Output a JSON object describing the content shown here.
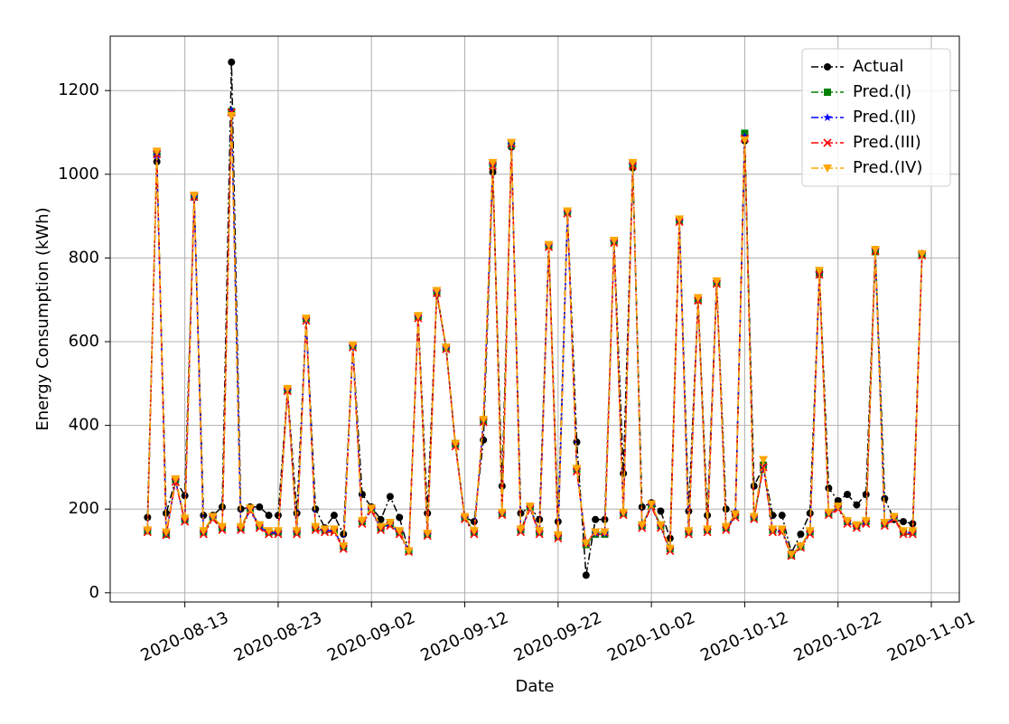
{
  "chart_data": {
    "type": "line",
    "xlabel": "Date",
    "ylabel": "Energy Consumption (kWh)",
    "x": [
      "2020-08-09",
      "2020-08-10",
      "2020-08-11",
      "2020-08-12",
      "2020-08-13",
      "2020-08-14",
      "2020-08-15",
      "2020-08-16",
      "2020-08-17",
      "2020-08-18",
      "2020-08-19",
      "2020-08-20",
      "2020-08-21",
      "2020-08-22",
      "2020-08-23",
      "2020-08-24",
      "2020-08-25",
      "2020-08-26",
      "2020-08-27",
      "2020-08-28",
      "2020-08-29",
      "2020-08-30",
      "2020-08-31",
      "2020-09-01",
      "2020-09-02",
      "2020-09-03",
      "2020-09-04",
      "2020-09-05",
      "2020-09-06",
      "2020-09-07",
      "2020-09-08",
      "2020-09-09",
      "2020-09-10",
      "2020-09-11",
      "2020-09-12",
      "2020-09-13",
      "2020-09-14",
      "2020-09-15",
      "2020-09-16",
      "2020-09-17",
      "2020-09-18",
      "2020-09-19",
      "2020-09-20",
      "2020-09-21",
      "2020-09-22",
      "2020-09-23",
      "2020-09-24",
      "2020-09-25",
      "2020-09-26",
      "2020-09-27",
      "2020-09-28",
      "2020-09-29",
      "2020-09-30",
      "2020-10-01",
      "2020-10-02",
      "2020-10-03",
      "2020-10-04",
      "2020-10-05",
      "2020-10-06",
      "2020-10-07",
      "2020-10-08",
      "2020-10-09",
      "2020-10-10",
      "2020-10-11",
      "2020-10-12",
      "2020-10-13",
      "2020-10-14",
      "2020-10-15",
      "2020-10-16",
      "2020-10-17",
      "2020-10-18",
      "2020-10-19",
      "2020-10-20",
      "2020-10-21",
      "2020-10-22",
      "2020-10-23",
      "2020-10-24",
      "2020-10-25",
      "2020-10-26",
      "2020-10-27",
      "2020-10-28",
      "2020-10-29",
      "2020-10-30",
      "2020-10-31"
    ],
    "series": [
      {
        "name": "Actual",
        "color": "#000000",
        "marker": "circle",
        "values": [
          180,
          1030,
          190,
          270,
          232,
          945,
          185,
          185,
          205,
          1268,
          200,
          205,
          205,
          185,
          185,
          485,
          190,
          655,
          200,
          155,
          185,
          140,
          590,
          235,
          205,
          175,
          230,
          180,
          100,
          660,
          190,
          715,
          585,
          355,
          180,
          170,
          365,
          1005,
          255,
          1065,
          190,
          205,
          175,
          830,
          170,
          910,
          360,
          42,
          175,
          175,
          840,
          285,
          1015,
          205,
          215,
          195,
          130,
          890,
          195,
          700,
          185,
          740,
          200,
          190,
          1080,
          255,
          300,
          185,
          185,
          95,
          140,
          190,
          760,
          250,
          220,
          235,
          210,
          235,
          820,
          225,
          175,
          170,
          165,
          810
        ]
      },
      {
        "name": "Pred.(I)",
        "color": "#008000",
        "marker": "square",
        "values": [
          148,
          1050,
          140,
          270,
          175,
          948,
          145,
          180,
          155,
          1150,
          155,
          200,
          160,
          145,
          145,
          485,
          145,
          655,
          155,
          150,
          150,
          110,
          590,
          170,
          200,
          155,
          165,
          145,
          100,
          660,
          140,
          720,
          585,
          355,
          180,
          145,
          410,
          1025,
          190,
          1070,
          150,
          205,
          145,
          830,
          135,
          910,
          295,
          115,
          140,
          140,
          840,
          190,
          1025,
          160,
          210,
          160,
          105,
          890,
          145,
          700,
          150,
          740,
          155,
          185,
          1098,
          180,
          305,
          150,
          150,
          90,
          110,
          145,
          765,
          190,
          205,
          170,
          160,
          170,
          815,
          165,
          180,
          145,
          145,
          808
        ]
      },
      {
        "name": "Pred.(II)",
        "color": "#0000ff",
        "marker": "star",
        "values": [
          150,
          1045,
          142,
          268,
          172,
          945,
          143,
          178,
          153,
          1152,
          153,
          198,
          158,
          142,
          143,
          483,
          143,
          652,
          153,
          148,
          148,
          108,
          588,
          168,
          198,
          153,
          163,
          143,
          102,
          658,
          138,
          718,
          583,
          353,
          178,
          143,
          412,
          1022,
          188,
          1072,
          148,
          203,
          143,
          828,
          133,
          908,
          293,
          118,
          142,
          142,
          838,
          188,
          1022,
          158,
          208,
          158,
          103,
          888,
          143,
          702,
          148,
          742,
          153,
          183,
          1090,
          178,
          303,
          148,
          148,
          92,
          112,
          143,
          762,
          188,
          203,
          168,
          158,
          168,
          818,
          163,
          178,
          143,
          143,
          810
        ]
      },
      {
        "name": "Pred.(III)",
        "color": "#ff0000",
        "marker": "x",
        "values": [
          145,
          1048,
          138,
          265,
          170,
          946,
          140,
          176,
          150,
          1148,
          150,
          196,
          155,
          140,
          140,
          482,
          140,
          650,
          150,
          145,
          145,
          105,
          586,
          165,
          196,
          150,
          160,
          140,
          98,
          656,
          136,
          716,
          582,
          350,
          176,
          140,
          408,
          1020,
          186,
          1074,
          145,
          200,
          140,
          826,
          130,
          906,
          290,
          120,
          145,
          145,
          836,
          186,
          1020,
          155,
          206,
          155,
          100,
          886,
          140,
          698,
          145,
          738,
          150,
          180,
          1085,
          176,
          300,
          145,
          145,
          88,
          108,
          140,
          760,
          186,
          200,
          165,
          155,
          165,
          816,
          160,
          176,
          140,
          140,
          806
        ]
      },
      {
        "name": "Pred.(IV)",
        "color": "#ffa500",
        "marker": "triangle-down",
        "values": [
          150,
          1055,
          145,
          272,
          178,
          950,
          148,
          182,
          158,
          1140,
          158,
          202,
          162,
          148,
          148,
          488,
          148,
          656,
          158,
          152,
          152,
          112,
          592,
          172,
          202,
          158,
          168,
          148,
          100,
          662,
          142,
          722,
          587,
          357,
          182,
          148,
          414,
          1028,
          192,
          1076,
          152,
          207,
          148,
          832,
          138,
          912,
          297,
          118,
          145,
          145,
          842,
          192,
          1028,
          162,
          212,
          162,
          106,
          893,
          148,
          705,
          152,
          745,
          158,
          188,
          1082,
          182,
          318,
          152,
          152,
          92,
          112,
          148,
          770,
          192,
          207,
          172,
          162,
          172,
          820,
          168,
          182,
          148,
          148,
          810
        ]
      }
    ],
    "xlim": [
      "2020-08-05",
      "2020-11-04"
    ],
    "xticks": [
      "2020-08-13",
      "2020-08-23",
      "2020-09-02",
      "2020-09-12",
      "2020-09-22",
      "2020-10-02",
      "2020-10-12",
      "2020-10-22",
      "2020-11-01"
    ],
    "ylim": [
      -22,
      1330
    ],
    "yticks": [
      0,
      200,
      400,
      600,
      800,
      1000,
      1200
    ],
    "grid": true,
    "legend": "upper right"
  }
}
